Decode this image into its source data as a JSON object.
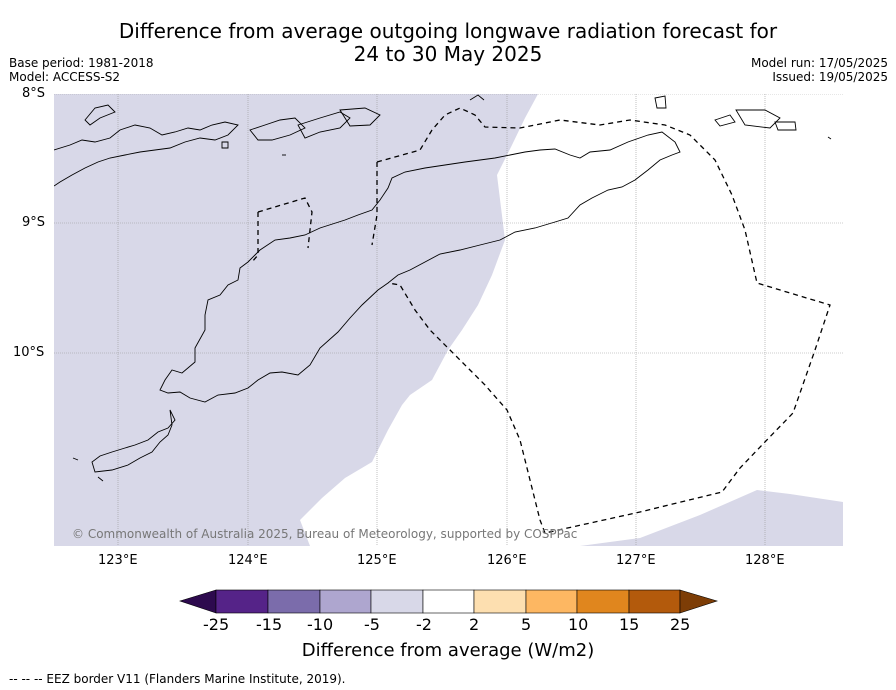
{
  "header": {
    "title_line1": "Difference from average outgoing longwave radiation forecast for",
    "title_line2": "24 to 30 May 2025",
    "base_period": "Base period: 1981-2018",
    "model": "Model: ACCESS-S2",
    "model_run": "Model run: 17/05/2025",
    "issued": "Issued: 19/05/2025"
  },
  "map": {
    "lat_labels": [
      "8°S",
      "9°S",
      "10°S"
    ],
    "lon_labels": [
      "123°E",
      "124°E",
      "125°E",
      "126°E",
      "127°E",
      "128°E"
    ],
    "lon_range": [
      122.5,
      128.6
    ],
    "lat_range": [
      -11.5,
      -8.0
    ],
    "copyright": "© Commonwealth of Australia 2025, Bureau of Meteorology, supported by COSPPac",
    "colors": {
      "anomaly_neg_2_5": "#d8d8e8",
      "coastline": "#000000",
      "eez": "#000000"
    }
  },
  "colorbar": {
    "tick_labels": [
      "-25",
      "-15",
      "-10",
      "-5",
      "-2",
      "2",
      "5",
      "10",
      "15",
      "25"
    ],
    "colors": [
      "#2d0a4e",
      "#552388",
      "#7b6cab",
      "#aea6cf",
      "#d8d8e8",
      "#ffffff",
      "#fddfb0",
      "#fdb762",
      "#e0861e",
      "#b35a0c",
      "#7d3d06"
    ],
    "title": "Difference from average (W/m2)"
  },
  "footer": {
    "eez_legend": "--  --  -- EEZ border V11 (Flanders Marine Institute, 2019)."
  }
}
